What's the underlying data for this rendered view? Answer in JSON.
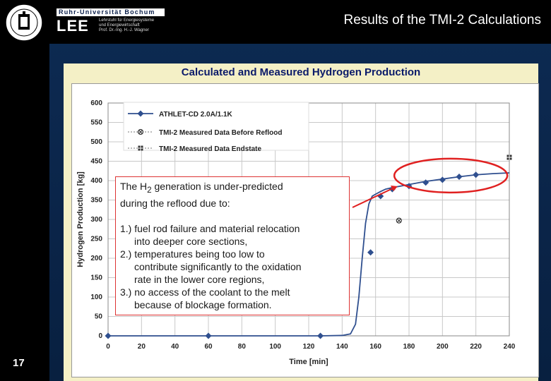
{
  "header": {
    "university": "Ruhr-Universität Bochum",
    "chair_logo": "LEE",
    "chair_lines": [
      "Lehrstuhl für Energiesysteme",
      "und Energiewirtschaft",
      "Prof. Dr.-Ing. H.-J. Wagner"
    ],
    "slide_title": "Results of the TMI-2 Calculations"
  },
  "panel_title": "Calculated and Measured Hydrogen Production",
  "callout": {
    "line1_pre": "The H",
    "line1_sub": "2",
    "line1_post": " generation is under-predicted",
    "line2": "during the reflood due to:",
    "items": [
      {
        "head": "1.) fuel rod failure and material relocation",
        "rest": "into deeper core sections,"
      },
      {
        "head": "2.) temperatures being too low to",
        "rest": "contribute significantly to the oxidation"
      },
      {
        "head": "",
        "rest": "rate in the lower core regions,"
      },
      {
        "head": "3.) no access of the coolant to the melt",
        "rest": "because of blockage formation."
      }
    ]
  },
  "footer": {
    "page_number": "17"
  },
  "colors": {
    "series": "#2f4f8f",
    "highlight": "#e02020",
    "background": "#0d2b53",
    "panel": "#f4f0c6"
  },
  "chart_data": {
    "type": "line",
    "xlabel": "Time [min]",
    "ylabel": "Hydrogen Production [kg]",
    "xlim": [
      0,
      240
    ],
    "ylim": [
      0,
      600
    ],
    "xticks": [
      0,
      20,
      40,
      60,
      80,
      100,
      120,
      140,
      160,
      180,
      200,
      220,
      240
    ],
    "yticks": [
      0,
      50,
      100,
      150,
      200,
      250,
      300,
      350,
      400,
      450,
      500,
      550,
      600
    ],
    "grid": true,
    "legend_position": "top-left",
    "series": [
      {
        "name": "ATHLET-CD 2.0A/1.1K",
        "marker": "diamond",
        "x": [
          0,
          60,
          127,
          140,
          145,
          148,
          150,
          152,
          154,
          156,
          158,
          160,
          163,
          166,
          170,
          175,
          180,
          190,
          200,
          210,
          220,
          230,
          240
        ],
        "y": [
          0,
          0,
          0,
          1,
          5,
          30,
          100,
          200,
          290,
          340,
          360,
          365,
          372,
          378,
          382,
          386,
          390,
          398,
          404,
          410,
          415,
          418,
          420
        ],
        "marker_x": [
          0,
          60,
          127,
          157,
          163,
          170,
          180,
          190,
          200,
          210,
          220
        ],
        "marker_y": [
          0,
          0,
          0,
          215,
          360,
          378,
          386,
          395,
          402,
          410,
          415
        ]
      },
      {
        "name": "TMI-2 Measured Data Before Reflood",
        "marker": "circle-x",
        "x": [
          174
        ],
        "y": [
          297
        ]
      },
      {
        "name": "TMI-2 Measured Data Endstate",
        "marker": "square-cross",
        "x": [
          240
        ],
        "y": [
          460
        ]
      }
    ]
  }
}
